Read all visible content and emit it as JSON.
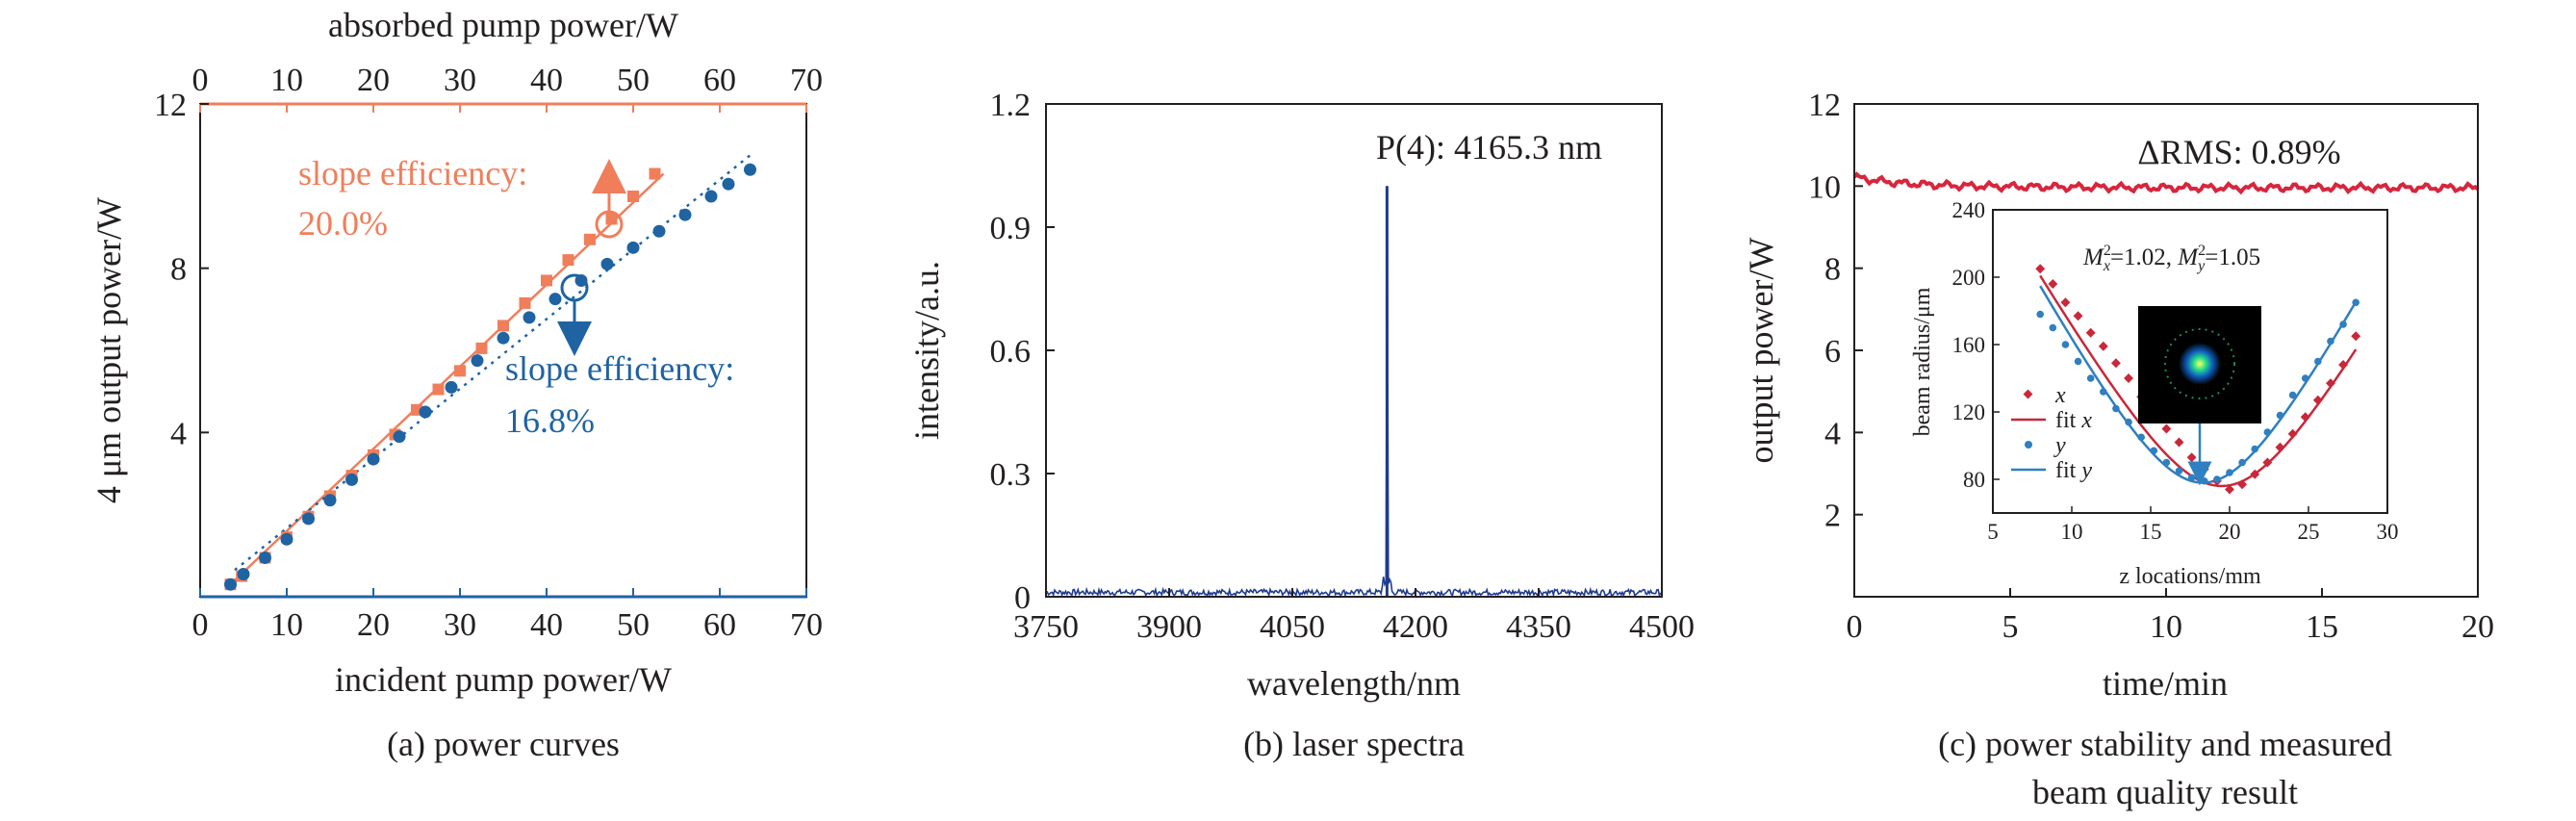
{
  "colors": {
    "orange": "#f07e5b",
    "blue": "#1f63a3",
    "spectrum": "#1f3b8f",
    "red": "#d7263d",
    "inset_red": "#c8283a",
    "inset_blue": "#2f7fc1",
    "axis": "#231f20"
  },
  "chart_data": [
    {
      "id": "a",
      "type": "scatter",
      "caption": "(a) power curves",
      "xlabel": "incident pump power/W",
      "x2label": "absorbed pump power/W",
      "ylabel": "4 μm output power/W",
      "xlim": [
        0,
        70
      ],
      "x2lim": [
        0,
        70
      ],
      "ylim": [
        0,
        12
      ],
      "xticks": [
        0,
        10,
        20,
        30,
        40,
        50,
        60,
        70
      ],
      "x2ticks": [
        0,
        10,
        20,
        30,
        40,
        50,
        60,
        70
      ],
      "yticks": [
        4,
        8,
        12
      ],
      "series": [
        {
          "marker": "square",
          "color": "orange",
          "axis": "absorbed",
          "x": [
            3.5,
            4.8,
            7.5,
            10,
            12.5,
            15,
            17.5,
            20,
            22.5,
            25,
            27.5,
            30,
            32.5,
            35,
            37.5,
            40,
            42.5,
            45,
            47.5,
            50,
            52.5
          ],
          "y": [
            0.3,
            0.5,
            0.95,
            1.45,
            1.95,
            2.45,
            2.95,
            3.45,
            3.95,
            4.55,
            5.05,
            5.5,
            6.05,
            6.6,
            7.15,
            7.7,
            8.2,
            8.7,
            9.2,
            9.75,
            10.3
          ]
        },
        {
          "marker": "circle",
          "color": "blue",
          "axis": "incident",
          "x": [
            3.5,
            5,
            7.5,
            10,
            12.5,
            15,
            17.5,
            20,
            23,
            26,
            29,
            32,
            35,
            38,
            41,
            44,
            47,
            50,
            53,
            56,
            59,
            61,
            63.5
          ],
          "y": [
            0.3,
            0.55,
            0.95,
            1.4,
            1.9,
            2.35,
            2.85,
            3.35,
            3.9,
            4.5,
            5.1,
            5.75,
            6.3,
            6.8,
            7.25,
            7.7,
            8.1,
            8.5,
            8.9,
            9.3,
            9.75,
            10.05,
            10.4
          ]
        }
      ],
      "fits": [
        {
          "color": "orange",
          "style": "solid",
          "x": [
            3.5,
            53.5
          ],
          "y": [
            0.3,
            10.3
          ]
        },
        {
          "color": "blue",
          "style": "dotted",
          "x": [
            4,
            63.5
          ],
          "y": [
            0.65,
            10.75
          ]
        }
      ],
      "annotations": [
        {
          "text_lines": [
            "slope efficiency:",
            "20.0%"
          ],
          "color": "orange"
        },
        {
          "text_lines": [
            "slope efficiency:",
            "16.8%"
          ],
          "color": "blue"
        }
      ]
    },
    {
      "id": "b",
      "type": "line",
      "caption": "(b) laser spectra",
      "xlabel": "wavelength/nm",
      "ylabel": "intensity/a.u.",
      "xlim": [
        3750,
        4500
      ],
      "ylim": [
        0,
        1.2
      ],
      "xticks": [
        3750,
        3900,
        4050,
        4200,
        4350,
        4500
      ],
      "yticks": [
        0,
        0.3,
        0.6,
        0.9,
        1.2
      ],
      "ytick_labels": [
        "0",
        "0.3",
        "0.6",
        "0.9",
        "1.2"
      ],
      "peak": {
        "x": 4165.3,
        "y": 1.0,
        "label": "P(4): 4165.3 nm"
      },
      "noise_level": 0.012
    },
    {
      "id": "c",
      "type": "line",
      "caption_lines": [
        "(c) power stability and measured",
        "beam quality result"
      ],
      "xlabel": "time/min",
      "ylabel": "output power/W",
      "xlim": [
        0,
        20
      ],
      "ylim": [
        0,
        12
      ],
      "xticks": [
        0,
        5,
        10,
        15,
        20
      ],
      "yticks": [
        2,
        4,
        6,
        8,
        10,
        12
      ],
      "series_value": 10.0,
      "annotation": "ΔRMS: 0.89%",
      "inset": {
        "type": "scatter",
        "xlabel": "z locations/mm",
        "ylabel": "beam radius/μm",
        "xlim": [
          5,
          30
        ],
        "ylim": [
          60,
          240
        ],
        "xticks": [
          5,
          10,
          15,
          20,
          25,
          30
        ],
        "yticks": [
          80,
          120,
          160,
          200,
          240
        ],
        "m2_label": "M²x=1.02, M²y=1.05",
        "legend": [
          {
            "label": "x",
            "kind": "marker",
            "color": "inset_red"
          },
          {
            "label": "fit x",
            "kind": "line",
            "color": "inset_red"
          },
          {
            "label": "y",
            "kind": "marker",
            "color": "inset_blue"
          },
          {
            "label": "fit y",
            "kind": "line",
            "color": "inset_blue"
          }
        ],
        "x_series": {
          "z": [
            8,
            8.8,
            9.6,
            10.4,
            11.2,
            12,
            12.8,
            13.6,
            14.4,
            15.2,
            16,
            16.8,
            17.6,
            18.4,
            19.2,
            20,
            20.8,
            21.6,
            22.4,
            23.2,
            24,
            24.8,
            25.6,
            26.4,
            27.2,
            28
          ],
          "r": [
            205,
            196,
            185,
            177,
            167,
            159,
            149,
            140,
            129,
            121,
            110,
            102,
            93,
            86,
            79,
            74,
            77,
            83,
            90,
            99,
            107,
            117,
            127,
            137,
            148,
            165
          ]
        },
        "x_fit": {
          "z0": 19.5,
          "w0": 76,
          "zr": 4.7
        },
        "y_series": {
          "z": [
            8,
            8.8,
            9.6,
            10.4,
            11.2,
            12,
            12.8,
            13.6,
            14.4,
            15.2,
            16,
            16.8,
            17.6,
            18.4,
            19.2,
            20,
            20.8,
            21.6,
            22.4,
            23.2,
            24,
            24.8,
            25.6,
            26.4,
            27.2,
            28
          ],
          "r": [
            178,
            170,
            160,
            150,
            140,
            132,
            122,
            114,
            105,
            97,
            90,
            85,
            81,
            79,
            80,
            84,
            90,
            98,
            108,
            118,
            130,
            140,
            150,
            162,
            172,
            185
          ]
        },
        "y_fit": {
          "z0": 18.3,
          "w0": 78,
          "zr": 4.5
        }
      }
    }
  ]
}
